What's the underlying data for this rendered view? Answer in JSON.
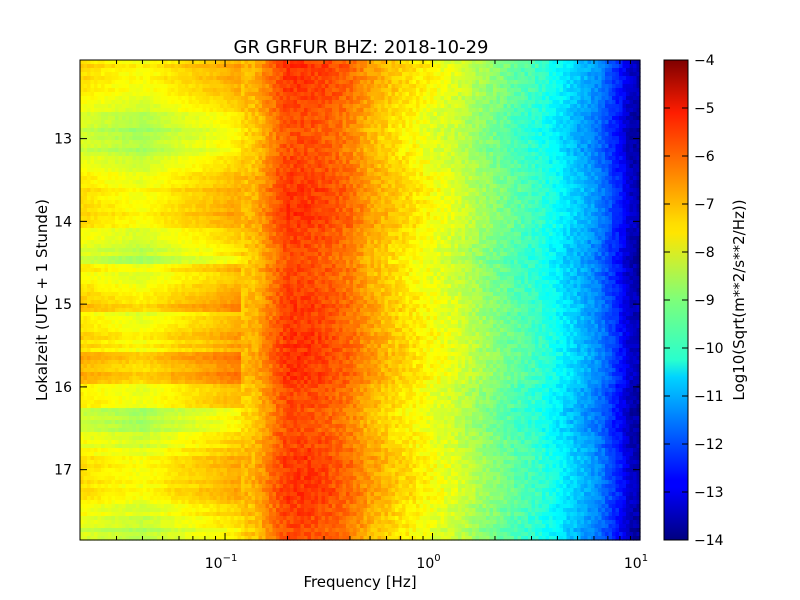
{
  "chart_data": {
    "type": "heatmap",
    "title": "GR GRFUR BHZ: 2018-10-29",
    "xlabel": "Frequency [Hz]",
    "ylabel": "Lokalzeit (UTC + 1 Stunde)",
    "xscale": "log",
    "xlim": [
      0.02,
      10
    ],
    "ylim": [
      12.05,
      17.85
    ],
    "y_inverted": true,
    "x_ticks": [
      {
        "value": 0.1,
        "base": "10",
        "exp": "−1"
      },
      {
        "value": 1,
        "base": "10",
        "exp": "0"
      },
      {
        "value": 10,
        "base": "10",
        "exp": "1"
      }
    ],
    "y_ticks": [
      13,
      14,
      15,
      16,
      17
    ],
    "colorbar": {
      "label": "Log10(Sqrt(m**2/s**2/Hz))",
      "range": [
        -14,
        -4
      ],
      "ticks": [
        "−4",
        "−5",
        "−6",
        "−7",
        "−8",
        "−9",
        "−10",
        "−11",
        "−12",
        "−13",
        "−14"
      ],
      "colormap": "jet"
    },
    "spectrum_profile": {
      "frequency_hz": [
        0.02,
        0.04,
        0.06,
        0.08,
        0.1,
        0.14,
        0.18,
        0.2,
        0.25,
        0.32,
        0.4,
        0.5,
        0.63,
        0.8,
        1.0,
        1.3,
        1.6,
        2.0,
        2.5,
        3.2,
        4.0,
        5.0,
        6.3,
        8.0,
        9.0,
        10.0
      ],
      "log10_amplitude": [
        -7.8,
        -8.2,
        -7.8,
        -7.6,
        -7.4,
        -7.1,
        -6.2,
        -5.9,
        -5.9,
        -6.1,
        -6.4,
        -6.9,
        -7.3,
        -7.6,
        -7.9,
        -8.2,
        -8.6,
        -9.0,
        -9.4,
        -9.8,
        -10.3,
        -10.9,
        -11.5,
        -12.6,
        -13.4,
        -13.6
      ]
    },
    "row_count": 120
  }
}
